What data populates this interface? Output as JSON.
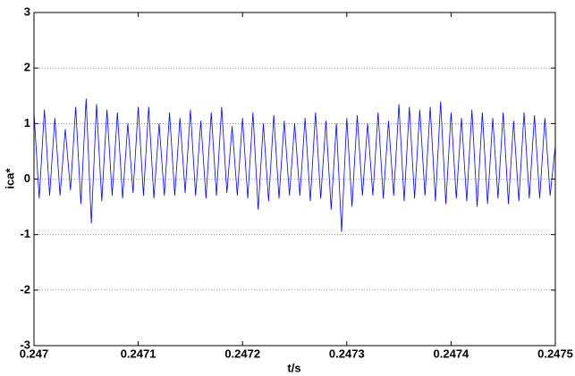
{
  "chart_data": {
    "type": "line",
    "xlabel": "t/s",
    "ylabel": "ica*",
    "x": [
      0.247,
      0.247005,
      0.24701,
      0.247015,
      0.24702,
      0.247025,
      0.24703,
      0.247035,
      0.24704,
      0.247045,
      0.24705,
      0.247055,
      0.24706,
      0.247065,
      0.24707,
      0.247075,
      0.24708,
      0.247085,
      0.24709,
      0.247095,
      0.2471,
      0.247105,
      0.24711,
      0.247115,
      0.24712,
      0.247125,
      0.24713,
      0.247135,
      0.24714,
      0.247145,
      0.24715,
      0.247155,
      0.24716,
      0.247165,
      0.24717,
      0.247175,
      0.24718,
      0.247185,
      0.24719,
      0.247195,
      0.2472,
      0.247205,
      0.24721,
      0.247215,
      0.24722,
      0.247225,
      0.24723,
      0.247235,
      0.24724,
      0.247245,
      0.24725,
      0.247255,
      0.24726,
      0.247265,
      0.24727,
      0.247275,
      0.24728,
      0.247285,
      0.24729,
      0.247295,
      0.2473,
      0.247305,
      0.24731,
      0.247315,
      0.24732,
      0.247325,
      0.24733,
      0.247335,
      0.24734,
      0.247345,
      0.24735,
      0.247355,
      0.24736,
      0.247365,
      0.24737,
      0.247375,
      0.24738,
      0.247385,
      0.24739,
      0.247395,
      0.2474,
      0.247405,
      0.24741,
      0.247415,
      0.24742,
      0.247425,
      0.24743,
      0.247435,
      0.24744,
      0.247445,
      0.24745,
      0.247455,
      0.24746,
      0.247465,
      0.24747,
      0.247475,
      0.24748,
      0.247485,
      0.24749,
      0.247495,
      0.2475
    ],
    "series": [
      {
        "color": "#0000ff",
        "values": [
          1.2,
          -0.35,
          1.25,
          -0.3,
          1.1,
          -0.3,
          0.9,
          -0.2,
          1.3,
          -0.45,
          1.45,
          -0.8,
          1.35,
          -0.4,
          1.25,
          -0.3,
          1.2,
          -0.35,
          1.0,
          -0.25,
          1.3,
          -0.3,
          1.3,
          -0.35,
          1.0,
          -0.3,
          1.2,
          -0.3,
          1.1,
          -0.25,
          1.25,
          -0.3,
          1.05,
          -0.35,
          1.2,
          -0.3,
          1.3,
          -0.25,
          0.95,
          -0.3,
          1.1,
          -0.35,
          1.2,
          -0.55,
          1.0,
          -0.4,
          1.15,
          -0.35,
          1.05,
          -0.3,
          1.0,
          -0.3,
          1.1,
          -0.4,
          1.2,
          -0.35,
          1.05,
          -0.55,
          1.0,
          -0.95,
          1.1,
          -0.5,
          1.15,
          -0.3,
          1.0,
          -0.3,
          1.2,
          -0.35,
          1.05,
          -0.3,
          1.35,
          -0.4,
          1.3,
          -0.35,
          1.25,
          -0.3,
          1.3,
          -0.4,
          1.4,
          -0.45,
          1.2,
          -0.35,
          1.1,
          -0.4,
          1.25,
          -0.5,
          1.2,
          -0.45,
          1.1,
          -0.35,
          1.2,
          -0.45,
          1.05,
          -0.4,
          1.2,
          -0.35,
          1.15,
          -0.35,
          1.1,
          -0.3,
          0.6
        ]
      }
    ],
    "xlim": [
      0.247,
      0.2475
    ],
    "xticks": [
      0.247,
      0.2471,
      0.2472,
      0.2473,
      0.2474,
      0.2475
    ],
    "ylim": [
      -3,
      3
    ],
    "yticks": [
      -3,
      -2,
      -1,
      0,
      1,
      2,
      3
    ],
    "grid": true
  }
}
